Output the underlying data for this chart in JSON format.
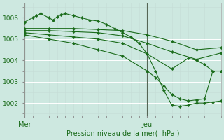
{
  "background_color": "#cde8e0",
  "grid_color": "#b8d8d0",
  "line_color": "#1a6b1a",
  "marker_color": "#1a6b1a",
  "xlabel": "Pression niveau de la mer(  hPa )",
  "ylabel_ticks": [
    1002,
    1003,
    1004,
    1005,
    1006
  ],
  "xlim": [
    0,
    48
  ],
  "ylim": [
    1001.4,
    1006.7
  ],
  "mer_x": 0,
  "jeu_x": 30,
  "lines": [
    {
      "x": [
        0,
        2,
        3,
        4,
        6,
        7,
        8,
        9,
        10,
        12,
        14,
        16,
        18,
        20,
        22,
        24,
        26,
        28,
        30,
        32,
        34,
        36,
        38,
        40,
        42,
        44,
        46,
        48
      ],
      "y": [
        1005.8,
        1006.0,
        1006.1,
        1006.2,
        1006.0,
        1005.9,
        1006.05,
        1006.15,
        1006.2,
        1006.1,
        1006.0,
        1005.9,
        1005.85,
        1005.7,
        1005.5,
        1005.3,
        1005.1,
        1004.8,
        1004.3,
        1003.5,
        1002.6,
        1001.9,
        1001.85,
        1001.9,
        1002.0,
        1002.0,
        1002.05,
        1002.1
      ]
    },
    {
      "x": [
        0,
        6,
        12,
        18,
        24,
        30,
        36,
        42,
        48
      ],
      "y": [
        1005.5,
        1005.5,
        1005.5,
        1005.45,
        1005.4,
        1005.2,
        1004.9,
        1004.5,
        1004.6
      ]
    },
    {
      "x": [
        0,
        6,
        12,
        18,
        24,
        30,
        36,
        42,
        48
      ],
      "y": [
        1005.4,
        1005.4,
        1005.35,
        1005.3,
        1005.15,
        1004.8,
        1004.4,
        1004.05,
        1004.35
      ]
    },
    {
      "x": [
        0,
        6,
        12,
        18,
        24,
        30,
        36,
        40,
        42,
        44,
        46,
        48
      ],
      "y": [
        1005.3,
        1005.2,
        1005.1,
        1005.0,
        1004.8,
        1004.3,
        1003.6,
        1004.1,
        1004.0,
        1003.8,
        1003.5,
        1003.5
      ]
    },
    {
      "x": [
        0,
        6,
        12,
        18,
        24,
        30,
        32,
        34,
        36,
        38,
        40,
        42,
        44,
        46,
        48
      ],
      "y": [
        1005.2,
        1005.0,
        1004.8,
        1004.5,
        1004.2,
        1003.5,
        1003.2,
        1002.8,
        1002.4,
        1002.2,
        1002.1,
        1002.15,
        1002.2,
        1003.5,
        1003.5
      ]
    }
  ]
}
